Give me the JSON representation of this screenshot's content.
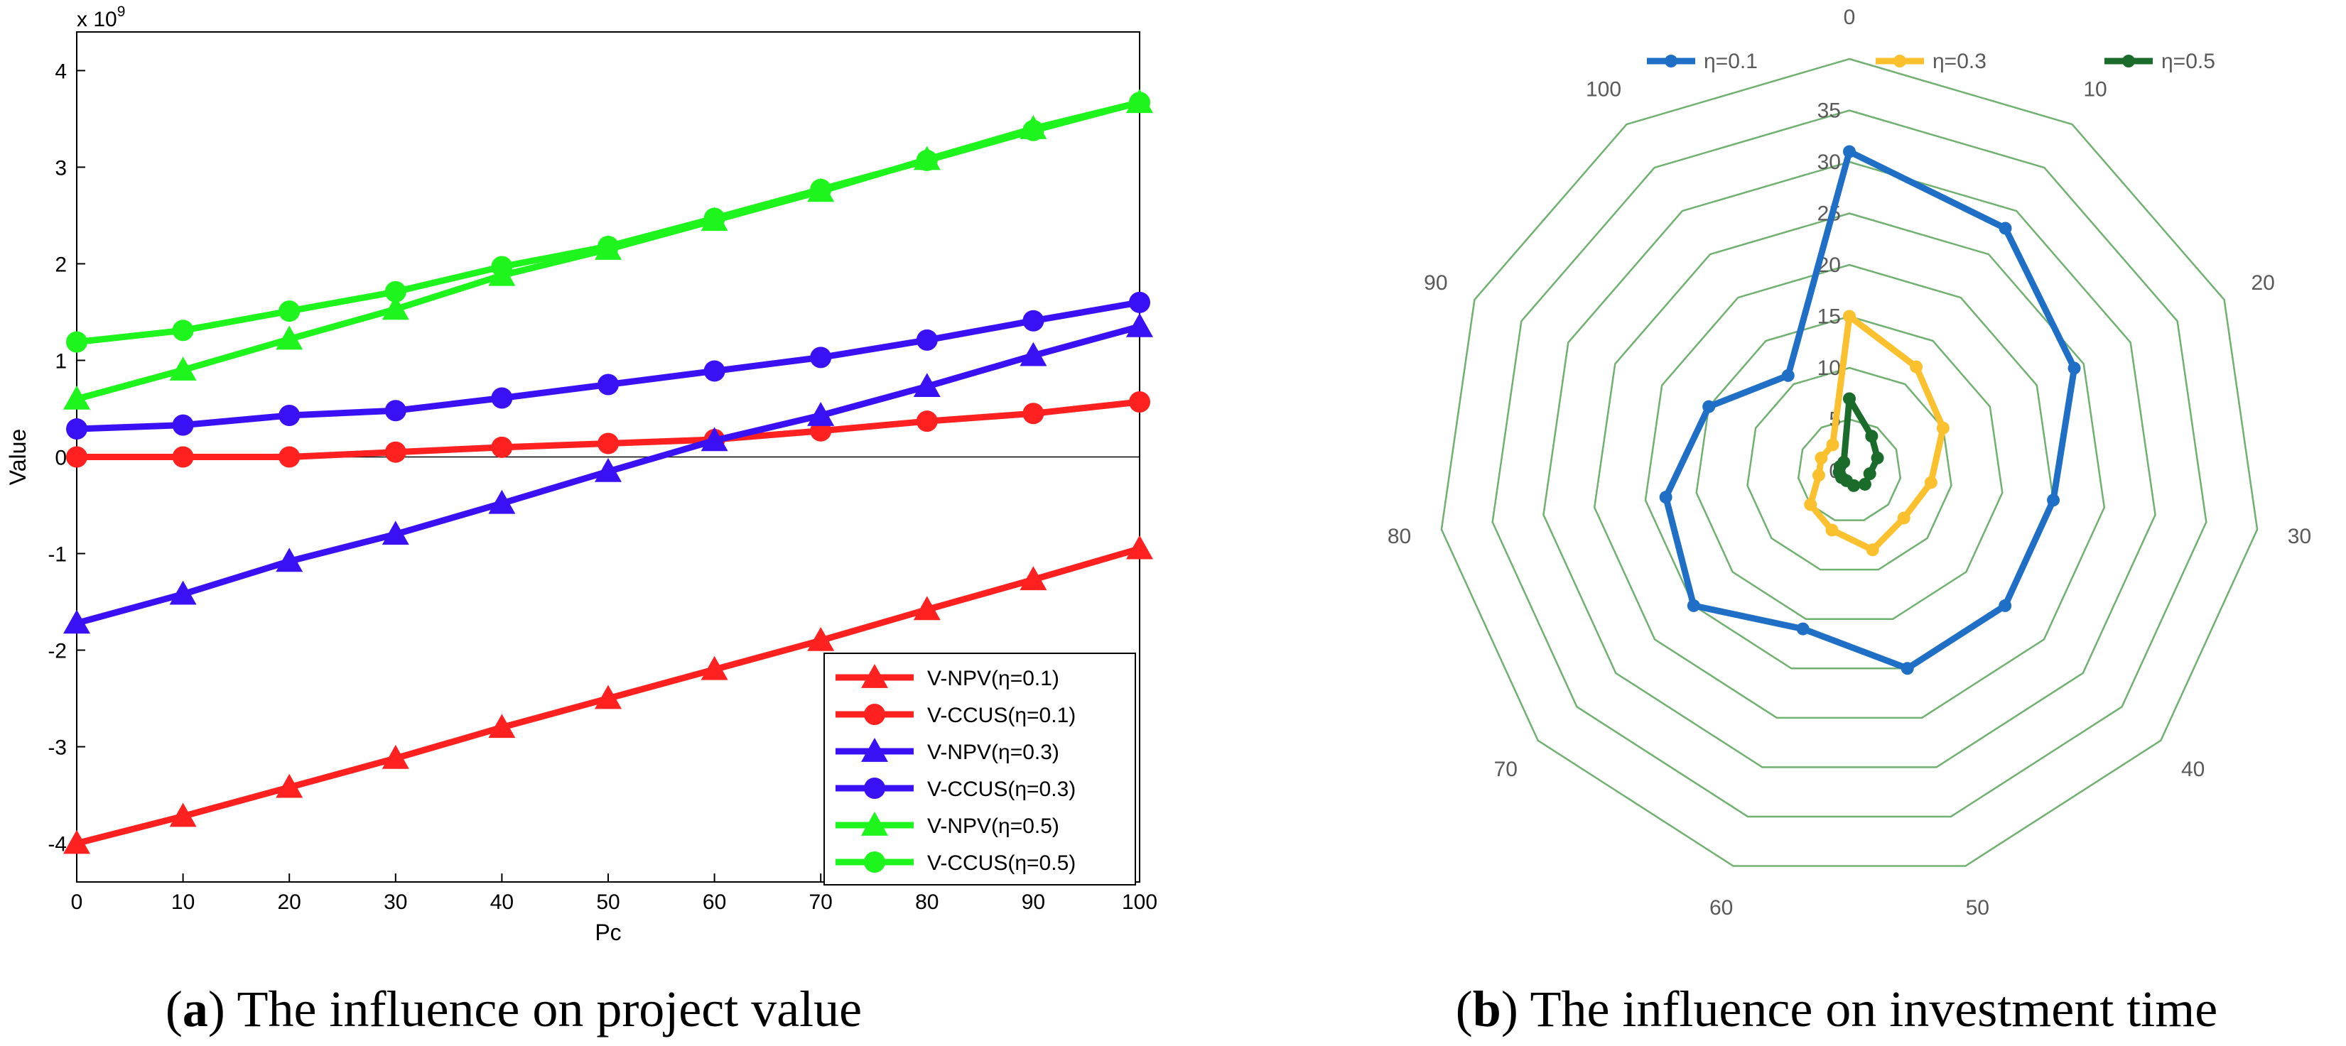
{
  "chart_data": [
    {
      "type": "line",
      "title": "",
      "xlabel": "Pc",
      "ylabel": "Value",
      "exponent_label": "x 10",
      "exponent_power": "9",
      "xlim": [
        0,
        100
      ],
      "ylim": [
        -4.4,
        4.4
      ],
      "x_ticks": [
        0,
        10,
        20,
        30,
        40,
        50,
        60,
        70,
        80,
        90,
        100
      ],
      "y_ticks": [
        4,
        3,
        2,
        1,
        0,
        -1,
        -2,
        -3,
        -4
      ],
      "legend_position": "bottom-right",
      "x": [
        0,
        10,
        20,
        30,
        40,
        50,
        60,
        70,
        80,
        90,
        100
      ],
      "series": [
        {
          "name": "V-NPV(η=0.1)",
          "color": "#ff2020",
          "marker": "triangle",
          "values": [
            -4.0,
            -3.72,
            -3.42,
            -3.12,
            -2.8,
            -2.5,
            -2.2,
            -1.9,
            -1.58,
            -1.27,
            -0.95
          ]
        },
        {
          "name": "V-CCUS(η=0.1)",
          "color": "#ff2020",
          "marker": "circle",
          "values": [
            0.0,
            0.0,
            0.0,
            0.05,
            0.1,
            0.14,
            0.18,
            0.27,
            0.37,
            0.45,
            0.57
          ]
        },
        {
          "name": "V-NPV(η=0.3)",
          "color": "#3a10f5",
          "marker": "triangle",
          "values": [
            -1.72,
            -1.42,
            -1.08,
            -0.8,
            -0.48,
            -0.15,
            0.17,
            0.43,
            0.73,
            1.05,
            1.35
          ]
        },
        {
          "name": "V-CCUS(η=0.3)",
          "color": "#3a10f5",
          "marker": "circle",
          "values": [
            0.29,
            0.33,
            0.43,
            0.48,
            0.61,
            0.75,
            0.89,
            1.03,
            1.21,
            1.41,
            1.6
          ]
        },
        {
          "name": "V-NPV(η=0.5)",
          "color": "#1df51d",
          "marker": "triangle",
          "values": [
            0.6,
            0.9,
            1.22,
            1.53,
            1.88,
            2.15,
            2.45,
            2.75,
            3.08,
            3.4,
            3.67
          ]
        },
        {
          "name": "V-CCUS(η=0.5)",
          "color": "#1df51d",
          "marker": "circle",
          "values": [
            1.19,
            1.31,
            1.51,
            1.71,
            1.97,
            2.18,
            2.47,
            2.77,
            3.07,
            3.38,
            3.67
          ]
        }
      ]
    },
    {
      "type": "radar",
      "title": "",
      "categories": [
        "0",
        "10",
        "20",
        "30",
        "40",
        "50",
        "60",
        "70",
        "80",
        "90",
        "100"
      ],
      "radial_ticks": [
        "0",
        "5",
        "10",
        "15",
        "20",
        "25",
        "30",
        "35"
      ],
      "rmax": 40,
      "legend_position": "top",
      "series": [
        {
          "name": "η=0.1",
          "color": "#1f6fc6",
          "values": [
            31,
            28,
            24,
            20,
            20,
            20,
            16,
            20,
            18,
            15,
            11
          ]
        },
        {
          "name": "η=0.3",
          "color": "#fbc02d",
          "values": [
            15,
            12,
            10,
            8,
            7,
            8,
            6,
            5,
            3,
            3,
            3
          ]
        },
        {
          "name": "η=0.5",
          "color": "#1b6b2b",
          "values": [
            7,
            4,
            3,
            2,
            2,
            1.5,
            1,
            1,
            1,
            1,
            1
          ]
        }
      ]
    }
  ],
  "captions": {
    "a_label": "a",
    "a_text": " The influence on project value",
    "b_label": "b",
    "b_text": " The influence on investment time"
  }
}
